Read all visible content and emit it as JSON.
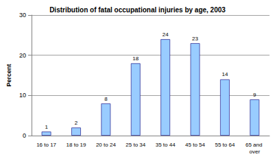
{
  "chart_data": {
    "type": "bar",
    "title": "Distribution of fatal occupational injuries by age, 2003",
    "y_label": "Percent",
    "categories": [
      "16 to 17",
      "18 to 19",
      "20 to 24",
      "25 to 34",
      "35 to 44",
      "45 to 54",
      "55 to 64",
      "65 and over"
    ],
    "values": [
      1,
      2,
      8,
      18,
      24,
      23,
      14,
      9
    ],
    "color": "#99ccff",
    "ylim": [
      0,
      30
    ],
    "yticks": [
      0,
      10,
      20,
      30
    ],
    "grid": true,
    "data_labels": true
  }
}
